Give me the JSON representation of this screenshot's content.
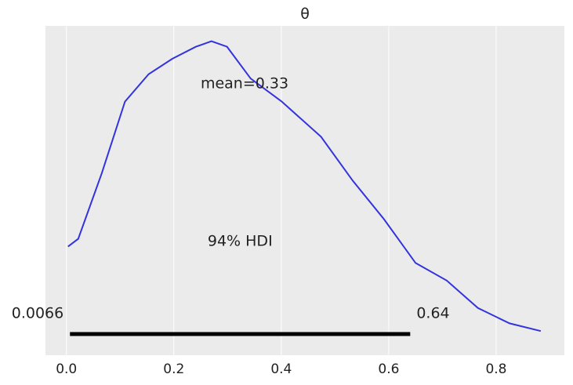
{
  "chart_data": {
    "type": "density",
    "title": "θ",
    "x": [
      0.003,
      0.022,
      0.066,
      0.109,
      0.153,
      0.197,
      0.241,
      0.27,
      0.299,
      0.343,
      0.401,
      0.474,
      0.533,
      0.591,
      0.65,
      0.708,
      0.766,
      0.825,
      0.883
    ],
    "values": [
      0.99,
      1.06,
      1.66,
      2.31,
      2.56,
      2.7,
      2.81,
      2.86,
      2.81,
      2.52,
      2.31,
      1.99,
      1.59,
      1.24,
      0.84,
      0.68,
      0.43,
      0.29,
      0.22
    ],
    "color": "#3333dd",
    "mean_label": "mean=0.33",
    "hdi": [
      0.0066,
      0.64
    ],
    "hdi_label": "94% HDI",
    "xlim": [
      -0.039,
      0.927
    ],
    "ylim": [
      0,
      3
    ],
    "xticks": [
      {
        "value": 0,
        "label": "0.0"
      },
      0.2,
      0.4,
      0.6,
      0.8
    ],
    "grid": true
  }
}
